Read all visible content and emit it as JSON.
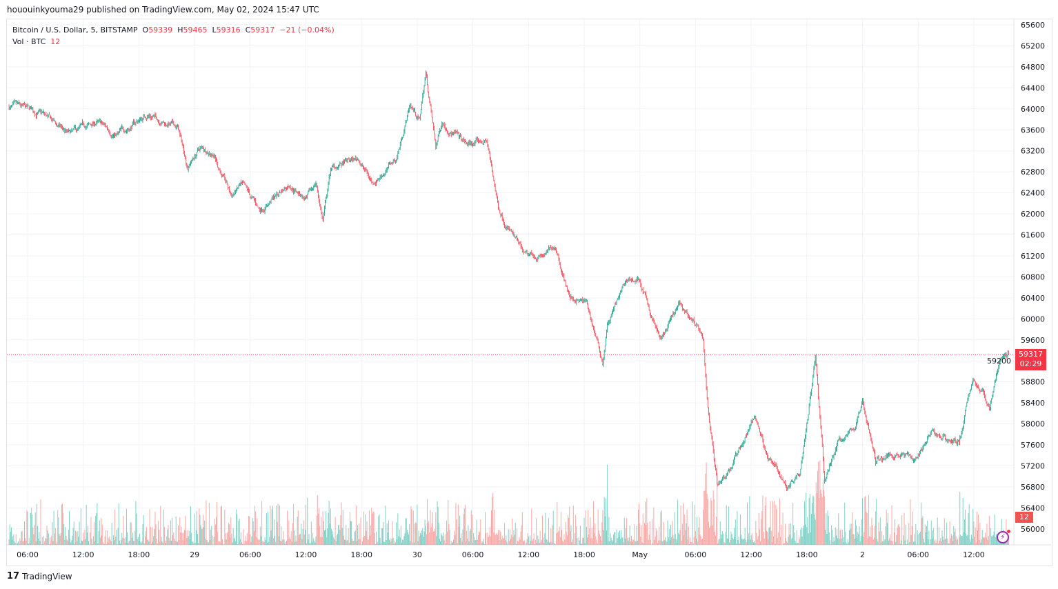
{
  "published": "hououinkyouma29 published on TradingView.com, May 02, 2024 15:47 UTC",
  "legend": {
    "symbol": "Bitcoin / U.S. Dollar, 5, BITSTAMP",
    "o_label": "O",
    "o": "59339",
    "h_label": "H",
    "h": "59465",
    "l_label": "L",
    "l": "59316",
    "c_label": "C",
    "c": "59317",
    "change": "−21 (−0.04%)",
    "vol_label": "Vol · BTC",
    "vol": "12"
  },
  "last_price_badge": {
    "price": "59317",
    "countdown": "02:29"
  },
  "volume_badge": "12",
  "footer": {
    "brand": "TradingView"
  },
  "colors": {
    "up": "#089981",
    "down": "#f23645",
    "up_vol": "#7fd1c6",
    "down_vol": "#f7a9a7",
    "grid": "#f0f3fa"
  },
  "chart_data": {
    "type": "candlestick",
    "interval": "5",
    "ylim": [
      56000,
      65600
    ],
    "y_ticks": [
      "65600",
      "65200",
      "64800",
      "64400",
      "64000",
      "63600",
      "63200",
      "62800",
      "62400",
      "62000",
      "61600",
      "61200",
      "60800",
      "60400",
      "60000",
      "59600",
      "59200",
      "58800",
      "58400",
      "58000",
      "57600",
      "57200",
      "56800",
      "56400",
      "56000"
    ],
    "x_ticks": [
      {
        "t": "2024-04-28 06:00",
        "label": "06:00"
      },
      {
        "t": "2024-04-28 12:00",
        "label": "12:00"
      },
      {
        "t": "2024-04-28 18:00",
        "label": "18:00"
      },
      {
        "t": "2024-04-29 00:00",
        "label": "29"
      },
      {
        "t": "2024-04-29 06:00",
        "label": "06:00"
      },
      {
        "t": "2024-04-29 12:00",
        "label": "12:00"
      },
      {
        "t": "2024-04-29 18:00",
        "label": "18:00"
      },
      {
        "t": "2024-04-30 00:00",
        "label": "30"
      },
      {
        "t": "2024-04-30 06:00",
        "label": "06:00"
      },
      {
        "t": "2024-04-30 12:00",
        "label": "12:00"
      },
      {
        "t": "2024-04-30 18:00",
        "label": "18:00"
      },
      {
        "t": "2024-05-01 00:00",
        "label": "May"
      },
      {
        "t": "2024-05-01 06:00",
        "label": "06:00"
      },
      {
        "t": "2024-05-01 12:00",
        "label": "12:00"
      },
      {
        "t": "2024-05-01 18:00",
        "label": "18:00"
      },
      {
        "t": "2024-05-02 00:00",
        "label": "2"
      },
      {
        "t": "2024-05-02 06:00",
        "label": "06:00"
      },
      {
        "t": "2024-05-02 12:00",
        "label": "12:00"
      }
    ],
    "last_price": 59317,
    "price_path": [
      [
        "2024-04-28 04:00",
        64040
      ],
      [
        "2024-04-28 07:30",
        63900
      ],
      [
        "2024-04-28 10:30",
        63500
      ],
      [
        "2024-04-28 13:30",
        63730
      ],
      [
        "2024-04-28 15:40",
        63500
      ],
      [
        "2024-04-28 19:00",
        63900
      ],
      [
        "2024-04-28 22:10",
        63640
      ],
      [
        "2024-04-28 23:15",
        62920
      ],
      [
        "2024-04-29 00:35",
        63250
      ],
      [
        "2024-04-29 02:00",
        63180
      ],
      [
        "2024-04-29 03:55",
        62330
      ],
      [
        "2024-04-29 05:00",
        62530
      ],
      [
        "2024-04-29 07:00",
        62070
      ],
      [
        "2024-04-29 09:30",
        62460
      ],
      [
        "2024-04-29 10:15",
        62590
      ],
      [
        "2024-04-29 12:05",
        62260
      ],
      [
        "2024-04-29 13:05",
        62590
      ],
      [
        "2024-04-29 13:50",
        61870
      ],
      [
        "2024-04-29 14:40",
        62850
      ],
      [
        "2024-04-29 17:40",
        63050
      ],
      [
        "2024-04-29 19:10",
        62590
      ],
      [
        "2024-04-29 21:45",
        63050
      ],
      [
        "2024-04-29 23:15",
        64100
      ],
      [
        "2024-04-30 00:15",
        63770
      ],
      [
        "2024-04-30 00:55",
        64690
      ],
      [
        "2024-04-30 02:00",
        63250
      ],
      [
        "2024-04-30 02:40",
        63770
      ],
      [
        "2024-04-30 05:15",
        63310
      ],
      [
        "2024-04-30 07:30",
        63380
      ],
      [
        "2024-04-30 08:45",
        62130
      ],
      [
        "2024-04-30 10:05",
        61670
      ],
      [
        "2024-04-30 11:35",
        61150
      ],
      [
        "2024-04-30 13:50",
        61210
      ],
      [
        "2024-04-30 14:55",
        61410
      ],
      [
        "2024-04-30 16:25",
        60420
      ],
      [
        "2024-04-30 18:15",
        60290
      ],
      [
        "2024-04-30 20:00",
        59180
      ],
      [
        "2024-04-30 20:30",
        59900
      ],
      [
        "2024-04-30 22:40",
        60750
      ],
      [
        "2024-04-30 23:50",
        60750
      ],
      [
        "2024-05-01 02:15",
        59570
      ],
      [
        "2024-05-01 04:15",
        60230
      ],
      [
        "2024-05-01 06:10",
        59900
      ],
      [
        "2024-05-01 06:50",
        59510
      ],
      [
        "2024-05-01 07:15",
        58460
      ],
      [
        "2024-05-01 08:20",
        56880
      ],
      [
        "2024-05-01 09:50",
        57210
      ],
      [
        "2024-05-01 12:25",
        58130
      ],
      [
        "2024-05-01 13:55",
        57340
      ],
      [
        "2024-05-01 15:50",
        56820
      ],
      [
        "2024-05-01 17:15",
        57150
      ],
      [
        "2024-05-01 18:00",
        58070
      ],
      [
        "2024-05-01 18:55",
        59320
      ],
      [
        "2024-05-01 19:55",
        56880
      ],
      [
        "2024-05-01 21:20",
        57670
      ],
      [
        "2024-05-01 23:15",
        57930
      ],
      [
        "2024-05-02 00:00",
        58460
      ],
      [
        "2024-05-02 01:25",
        57280
      ],
      [
        "2024-05-02 03:40",
        57470
      ],
      [
        "2024-05-02 05:35",
        57340
      ],
      [
        "2024-05-02 07:25",
        57800
      ],
      [
        "2024-05-02 10:25",
        57670
      ],
      [
        "2024-05-02 11:55",
        58850
      ],
      [
        "2024-05-02 13:45",
        58330
      ],
      [
        "2024-05-02 14:50",
        59240
      ],
      [
        "2024-05-02 15:45",
        59317
      ]
    ]
  }
}
